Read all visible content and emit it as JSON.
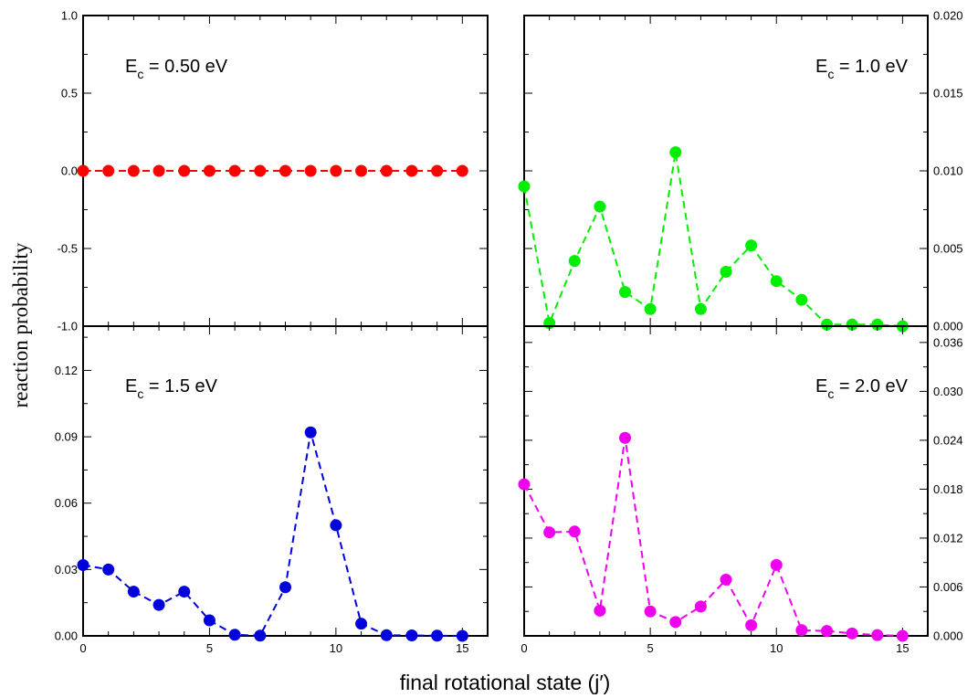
{
  "figure": {
    "xlabel": "final rotational state (j′)",
    "ylabel": "reaction probability"
  },
  "chart_data": [
    {
      "type": "line",
      "panel": "top-left",
      "annotation": {
        "main": "E",
        "sub": "c",
        "rest": " = 0.50 eV"
      },
      "annotation_position": "top-left",
      "x": [
        0,
        1,
        2,
        3,
        4,
        5,
        6,
        7,
        8,
        9,
        10,
        11,
        12,
        13,
        14,
        15
      ],
      "series": [
        {
          "values": [
            0,
            0,
            0,
            0,
            0,
            0,
            0,
            0,
            0,
            0,
            0,
            0,
            0,
            0,
            0,
            0
          ],
          "color": "#ff0000",
          "style": "dashed",
          "markers": true
        }
      ],
      "xlim": [
        0,
        16
      ],
      "ylim": [
        -1.0,
        1.0
      ],
      "yticks_major": [
        "-1.0",
        "-0.5",
        "0.0",
        "0.5",
        "1.0"
      ],
      "yaxis_side": "left",
      "xticks": []
    },
    {
      "type": "line",
      "panel": "top-right",
      "annotation": {
        "main": "E",
        "sub": "c",
        "rest": " = 1.0 eV"
      },
      "annotation_position": "top-right",
      "x": [
        0,
        1,
        2,
        3,
        4,
        5,
        6,
        7,
        8,
        9,
        10,
        11,
        12,
        13,
        14,
        15
      ],
      "series": [
        {
          "values": [
            0.009,
            0.0002,
            0.0042,
            0.0077,
            0.0022,
            0.0011,
            0.0112,
            0.0011,
            0.0035,
            0.0052,
            0.0029,
            0.0017,
            0.0001,
            0.0001,
            0.0001,
            0.0
          ],
          "color": "#00ee00",
          "style": "dashed",
          "markers": true
        }
      ],
      "xlim": [
        0,
        16
      ],
      "ylim": [
        0.0,
        0.02
      ],
      "yticks_major": [
        "0.000",
        "0.005",
        "0.010",
        "0.015",
        "0.020"
      ],
      "yaxis_side": "right",
      "xticks": []
    },
    {
      "type": "line",
      "panel": "bottom-left",
      "annotation": {
        "main": "E",
        "sub": "c",
        "rest": " = 1.5 eV"
      },
      "annotation_position": "top-left",
      "x": [
        0,
        1,
        2,
        3,
        4,
        5,
        6,
        7,
        8,
        9,
        10,
        11,
        12,
        13,
        14,
        15
      ],
      "series": [
        {
          "values": [
            0.032,
            0.03,
            0.02,
            0.014,
            0.02,
            0.007,
            0.0005,
            0.0001,
            0.022,
            0.092,
            0.05,
            0.0055,
            0.0003,
            0.0002,
            0.0001,
            0.0
          ],
          "color": "#0000dd",
          "style": "dashed",
          "markers": true
        }
      ],
      "xlim": [
        0,
        16
      ],
      "ylim": [
        0.0,
        0.14
      ],
      "yticks_major": [
        "0.00",
        "0.03",
        "0.06",
        "0.09",
        "0.12"
      ],
      "yaxis_side": "left",
      "xticks": [
        "0",
        "5",
        "10",
        "15"
      ]
    },
    {
      "type": "line",
      "panel": "bottom-right",
      "annotation": {
        "main": "E",
        "sub": "c",
        "rest": " = 2.0 eV"
      },
      "annotation_position": "top-right",
      "x": [
        0,
        1,
        2,
        3,
        4,
        5,
        6,
        7,
        8,
        9,
        10,
        11,
        12,
        13,
        14,
        15
      ],
      "series": [
        {
          "values": [
            0.0186,
            0.0127,
            0.0128,
            0.0031,
            0.0243,
            0.003,
            0.0017,
            0.0036,
            0.0069,
            0.0013,
            0.0087,
            0.0007,
            0.0006,
            0.0003,
            0.0001,
            0.0
          ],
          "color": "#ee00ee",
          "style": "dashed",
          "markers": true
        }
      ],
      "xlim": [
        0,
        16
      ],
      "ylim": [
        0.0,
        0.038
      ],
      "yticks_major": [
        "0.000",
        "0.006",
        "0.012",
        "0.018",
        "0.024",
        "0.030",
        "0.036"
      ],
      "yaxis_side": "right",
      "xticks": [
        "0",
        "5",
        "10",
        "15"
      ]
    }
  ]
}
